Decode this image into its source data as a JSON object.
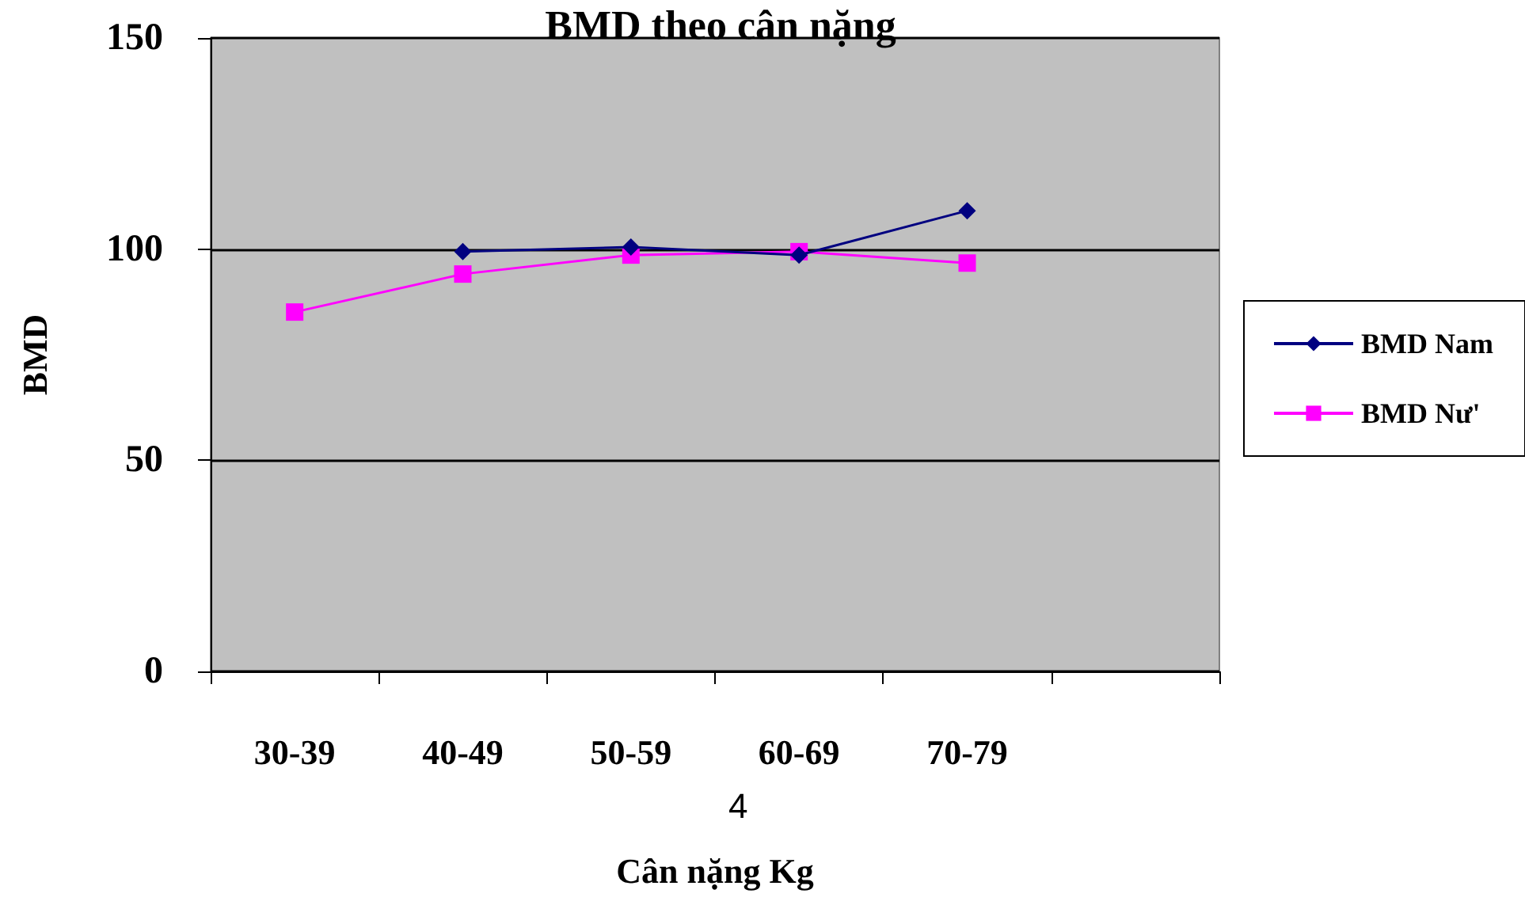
{
  "chart_data": {
    "type": "line",
    "title": "BMD theo cân nặng",
    "xlabel": "Cân nặng Kg",
    "ylabel": "BMD",
    "categories": [
      "30-39",
      "40-49",
      "50-59",
      "60-69",
      "70-79",
      null
    ],
    "series": [
      {
        "name": "BMD Nam",
        "color": "#000080",
        "marker": "diamond",
        "values": [
          null,
          99.4,
          100.5,
          98.6,
          109.1,
          null
        ]
      },
      {
        "name": "BMD Nư'",
        "color": "#ff00ff",
        "marker": "square",
        "values": [
          85.1,
          94.1,
          98.6,
          99.4,
          96.7,
          null
        ]
      }
    ],
    "ylim": [
      0,
      150
    ],
    "yticks": [
      0,
      50,
      100,
      150
    ],
    "grid": "y",
    "legend": "right",
    "line_style": "solid",
    "annotations": [
      "4"
    ]
  }
}
